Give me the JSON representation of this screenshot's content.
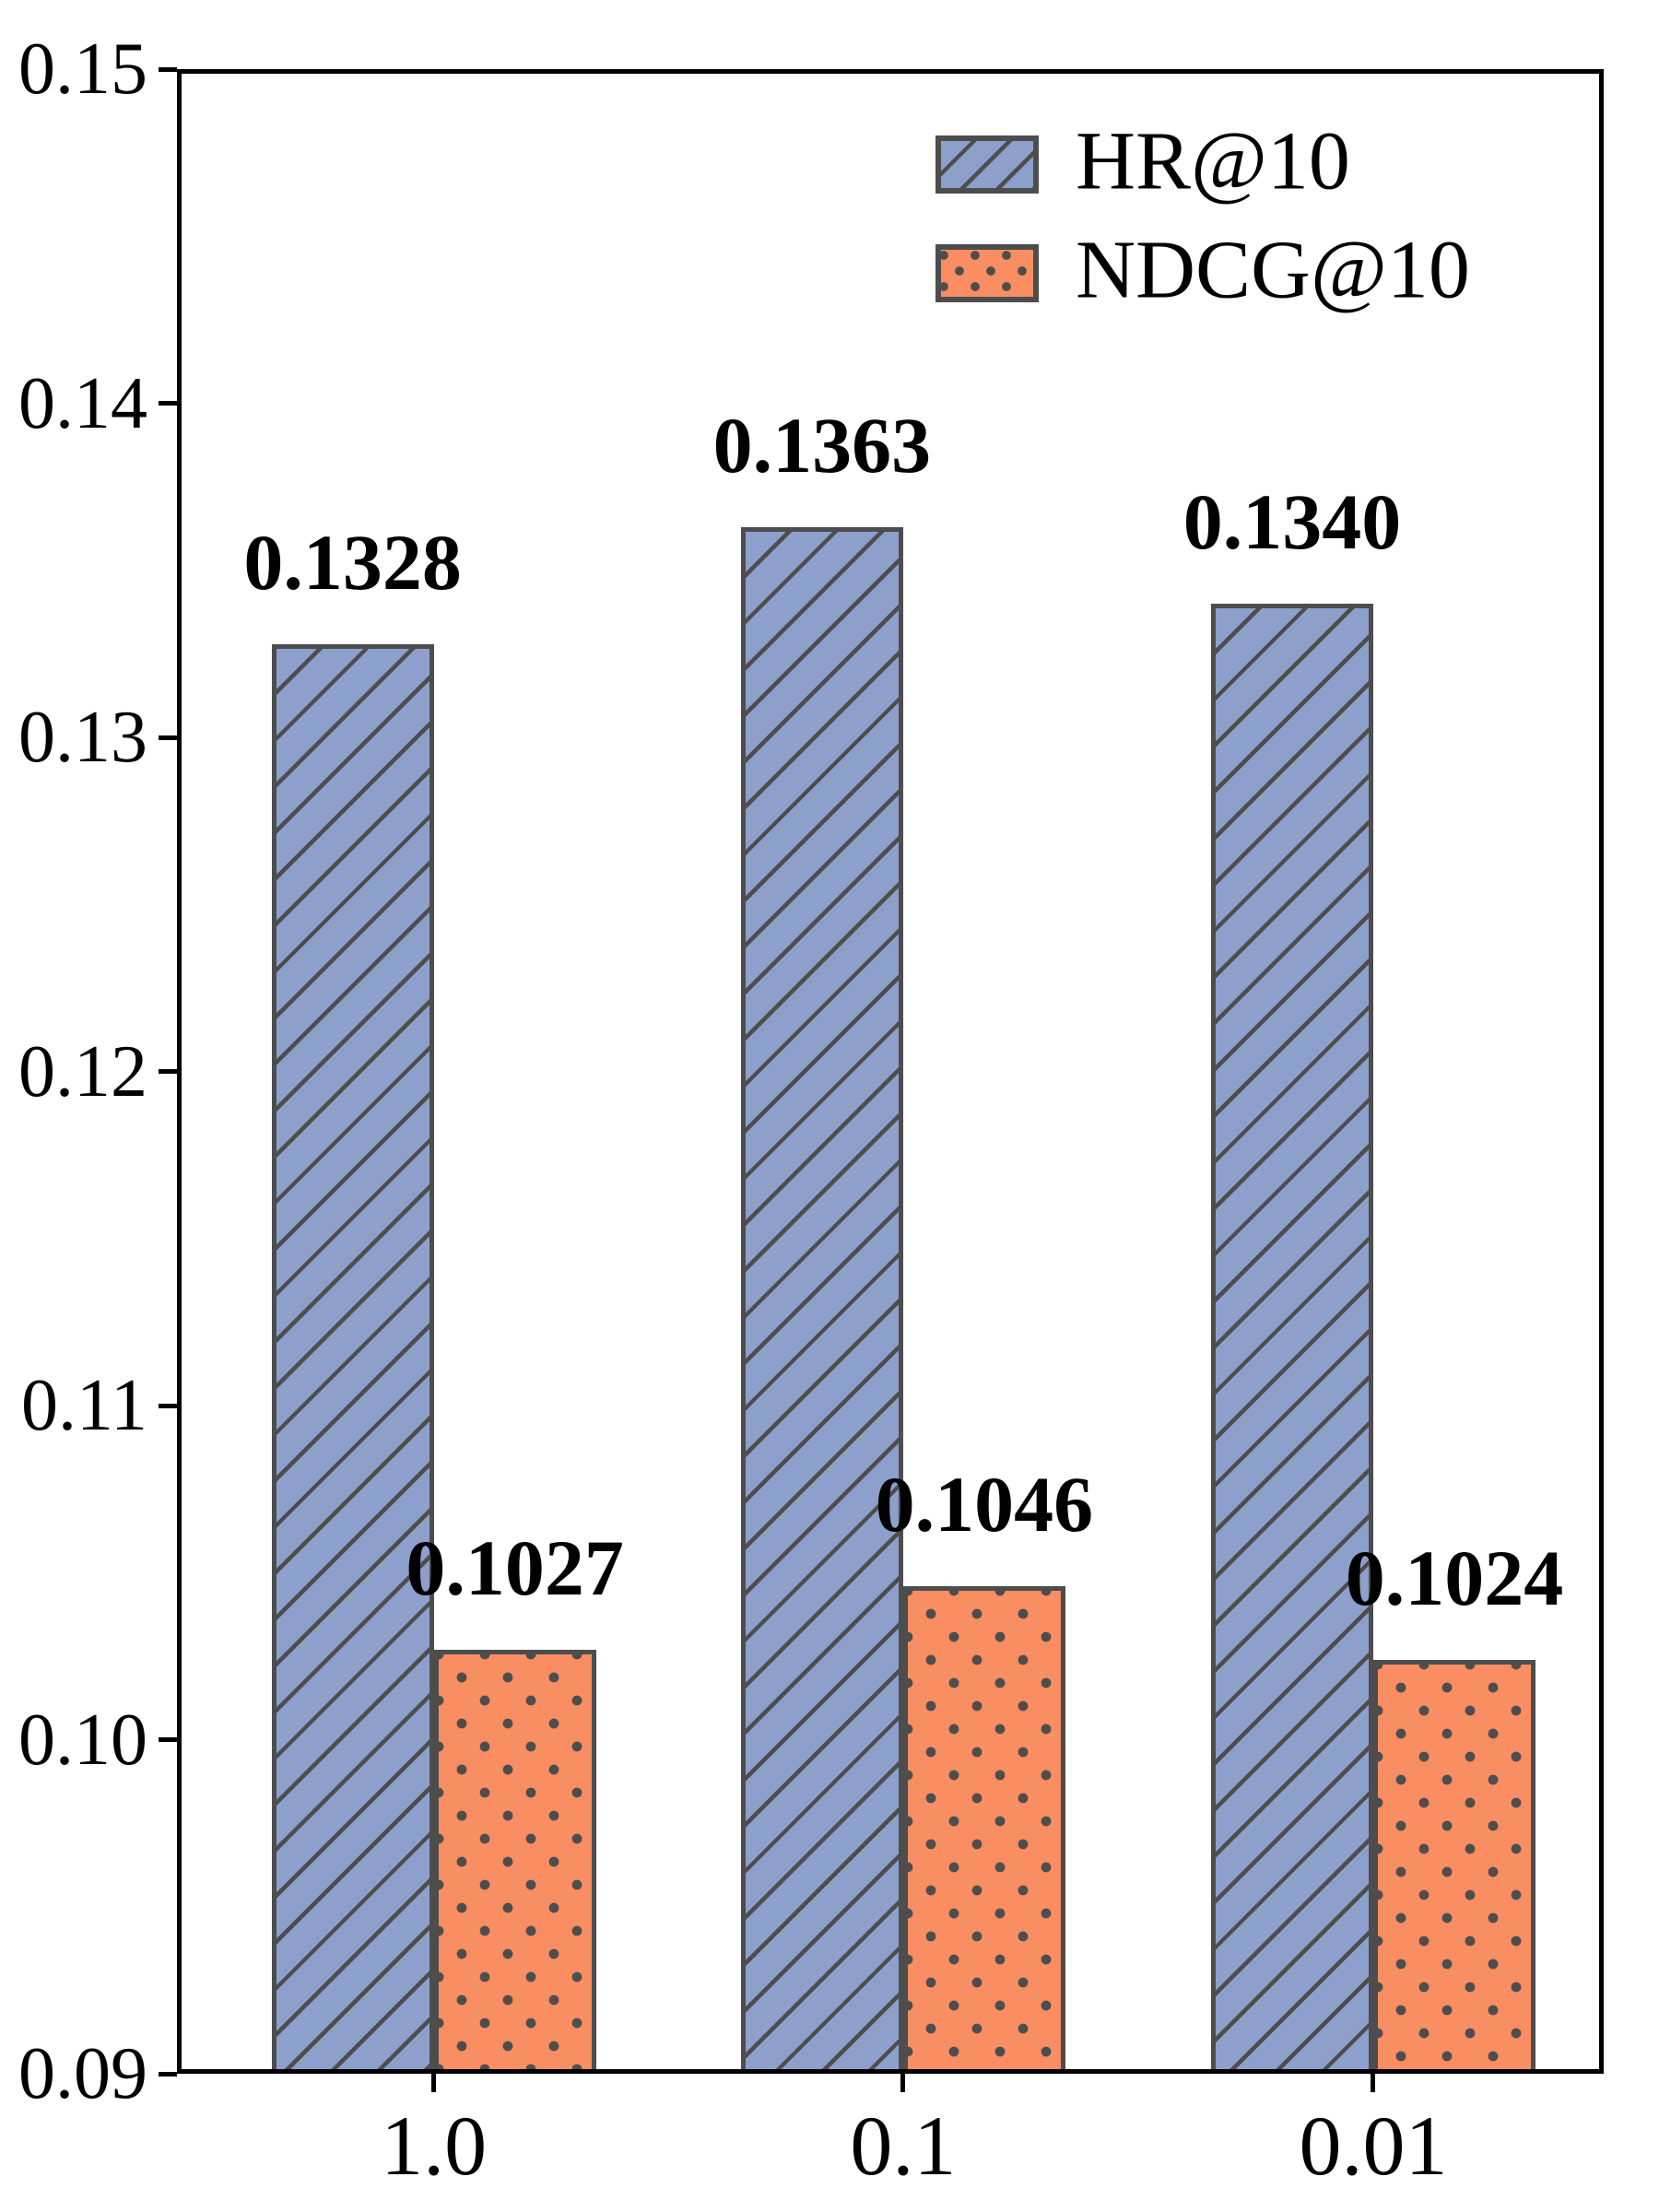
{
  "chart_data": {
    "type": "bar",
    "categories": [
      "1.0",
      "0.1",
      "0.01"
    ],
    "series": [
      {
        "name": "HR@10",
        "values": [
          0.1328,
          0.1363,
          0.134
        ],
        "value_labels": [
          "0.1328",
          "0.1363",
          "0.1340"
        ],
        "fill": "#8D9FCB",
        "edge": "#4D4D4D",
        "pattern": "diagonal"
      },
      {
        "name": "NDCG@10",
        "values": [
          0.1027,
          0.1046,
          0.1024
        ],
        "value_labels": [
          "0.1027",
          "0.1046",
          "0.1024"
        ],
        "fill": "#F98E62",
        "edge": "#4D4D4D",
        "pattern": "dots"
      }
    ],
    "title": "",
    "xlabel": "",
    "ylabel": "",
    "ylim": [
      0.09,
      0.15
    ],
    "yticks": [
      0.09,
      0.1,
      0.11,
      0.12,
      0.13,
      0.14,
      0.15
    ],
    "ytick_labels": [
      "0.09",
      "0.10",
      "0.11",
      "0.12",
      "0.13",
      "0.14",
      "0.15"
    ],
    "grid": false,
    "legend_position": "upper-right",
    "value_labels_bold": true
  },
  "colors": {
    "axis": "#000000",
    "text": "#000000",
    "hatch": "#4D4D4D",
    "hr_fill": "#8D9FCB",
    "ndcg_fill": "#F98E62",
    "background": "#ffffff"
  }
}
